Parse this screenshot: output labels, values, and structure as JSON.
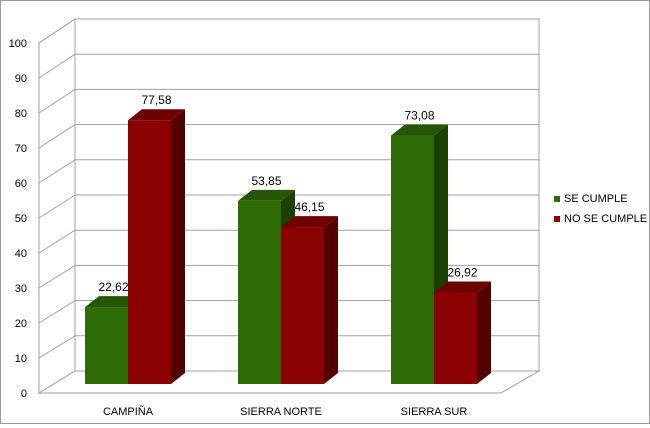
{
  "chart_data": {
    "type": "bar",
    "title": "",
    "xlabel": "",
    "ylabel": "",
    "ylim": [
      0,
      100
    ],
    "yticks": [
      0,
      10,
      20,
      30,
      40,
      50,
      60,
      70,
      80,
      90,
      100
    ],
    "categories": [
      "CAMPIÑA",
      "SIERRA NORTE",
      "SIERRA SUR"
    ],
    "series": [
      {
        "name": "SE CUMPLE",
        "values": [
          22.62,
          53.85,
          73.08
        ],
        "value_labels": [
          "22,62",
          "53,85",
          "73,08"
        ],
        "color": "#2f6b04"
      },
      {
        "name": "NO SE CUMPLE",
        "values": [
          77.58,
          46.15,
          26.92
        ],
        "value_labels": [
          "77,58",
          "46,15",
          "26,92"
        ],
        "color": "#8b0000"
      }
    ],
    "grid": true,
    "legend_position": "right",
    "style_3d": true
  }
}
